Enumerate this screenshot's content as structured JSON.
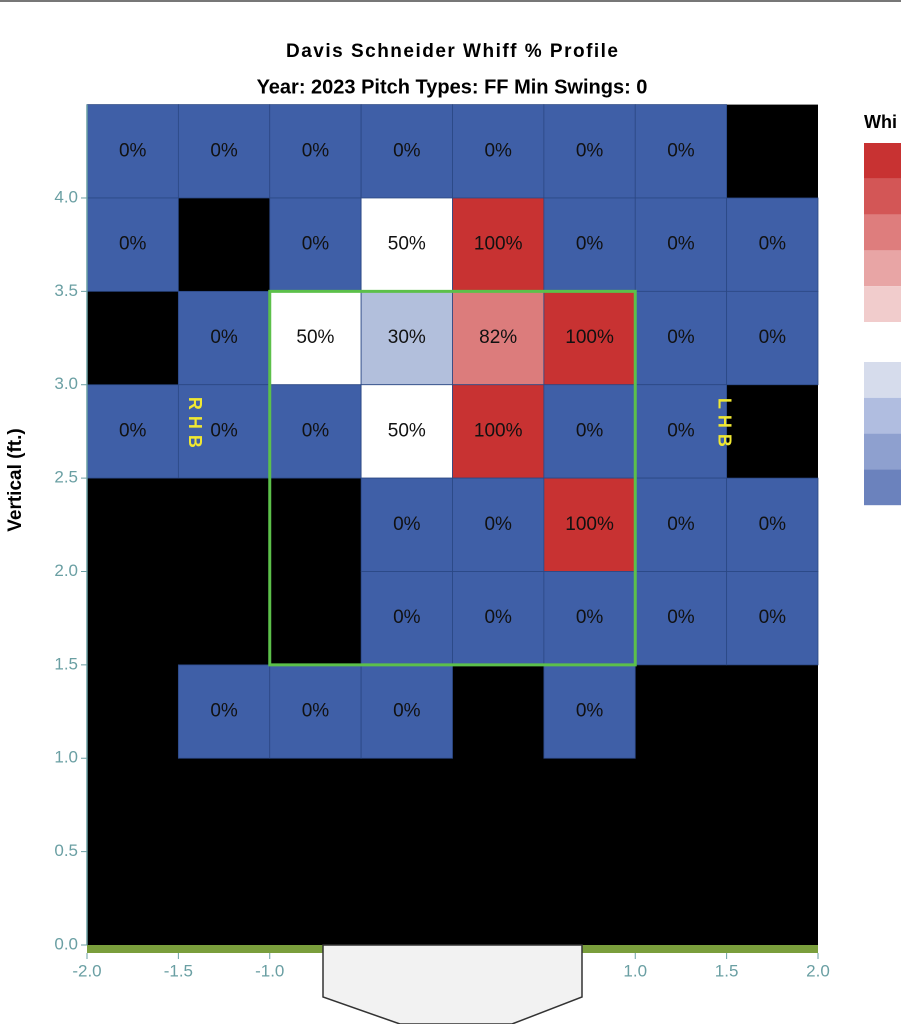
{
  "chart_data": {
    "type": "heatmap",
    "title": "Davis Schneider Whiff % Profile",
    "subtitle": "Year: 2023 Pitch Types: FF Min Swings: 0",
    "y_label": "Vertical (ft.)",
    "x_edges": [
      -2,
      -1.5,
      -1,
      -0.5,
      0,
      0.5,
      1,
      1.5,
      2
    ],
    "y_edges": [
      4.5,
      4,
      3.5,
      3,
      2.5,
      2,
      1.5,
      1,
      0.5,
      0
    ],
    "values": [
      [
        0,
        0,
        0,
        0,
        0,
        0,
        0,
        null
      ],
      [
        0,
        null,
        0,
        50,
        100,
        0,
        0,
        0
      ],
      [
        null,
        0,
        50,
        30,
        82,
        100,
        0,
        0
      ],
      [
        0,
        0,
        0,
        50,
        100,
        0,
        0,
        null
      ],
      [
        null,
        null,
        null,
        0,
        0,
        100,
        0,
        0
      ],
      [
        null,
        null,
        null,
        0,
        0,
        0,
        0,
        0
      ],
      [
        null,
        0,
        0,
        0,
        null,
        0,
        null,
        null
      ],
      [
        null,
        null,
        null,
        null,
        null,
        null,
        null,
        null
      ],
      [
        null,
        null,
        null,
        null,
        null,
        null,
        null,
        null
      ]
    ],
    "value_labels": [
      [
        "0%",
        "0%",
        "0%",
        "0%",
        "0%",
        "0%",
        "0%",
        null
      ],
      [
        "0%",
        null,
        "0%",
        "50%",
        "100%",
        "0%",
        "0%",
        "0%"
      ],
      [
        null,
        "0%",
        "50%",
        "30%",
        "82%",
        "100%",
        "0%",
        "0%"
      ],
      [
        "0%",
        "0%",
        "0%",
        "50%",
        "100%",
        "0%",
        "0%",
        null
      ],
      [
        null,
        null,
        null,
        "0%",
        "0%",
        "100%",
        "0%",
        "0%"
      ],
      [
        null,
        null,
        null,
        "0%",
        "0%",
        "0%",
        "0%",
        "0%"
      ],
      [
        null,
        "0%",
        "0%",
        "0%",
        null,
        "0%",
        null,
        null
      ],
      [
        null,
        null,
        null,
        null,
        null,
        null,
        null,
        null
      ],
      [
        null,
        null,
        null,
        null,
        null,
        null,
        null,
        null
      ]
    ],
    "colorscale": [
      {
        "value": 0,
        "color": "#3f5fa7"
      },
      {
        "value": 50,
        "color": "#ffffff"
      },
      {
        "value": 100,
        "color": "#c83232"
      }
    ],
    "empty_color": "#000000",
    "xlim": [
      -2,
      2
    ],
    "ylim": [
      0,
      4.5
    ],
    "xticks": [
      {
        "value": -2,
        "label": "-2.0"
      },
      {
        "value": -1.5,
        "label": "-1.5"
      },
      {
        "value": -1,
        "label": "-1.0"
      },
      {
        "value": 1,
        "label": "1.0"
      },
      {
        "value": 1.5,
        "label": "1.5"
      },
      {
        "value": 2,
        "label": "2.0"
      }
    ],
    "yticks": [
      {
        "value": 0,
        "label": "0.0"
      },
      {
        "value": 0.5,
        "label": "0.5"
      },
      {
        "value": 1,
        "label": "1.0"
      },
      {
        "value": 1.5,
        "label": "1.5"
      },
      {
        "value": 2,
        "label": "2.0"
      },
      {
        "value": 2.5,
        "label": "2.5"
      },
      {
        "value": 3,
        "label": "3.0"
      },
      {
        "value": 3.5,
        "label": "3.5"
      },
      {
        "value": 4,
        "label": "4.0"
      }
    ],
    "strike_zone": {
      "x": [
        -1,
        1
      ],
      "y": [
        1.5,
        3.5
      ],
      "color": "#5cc04a"
    },
    "annotations": [
      "RHB",
      "LHB"
    ],
    "legend": {
      "title": "Whi",
      "colors": [
        "#c83232",
        "#d35656",
        "#de7d7d",
        "#e8a5a5",
        "#f1cccc",
        "#d6dcec",
        "#b0bde0",
        "#8ea0cf",
        "#6b82bd"
      ]
    }
  }
}
